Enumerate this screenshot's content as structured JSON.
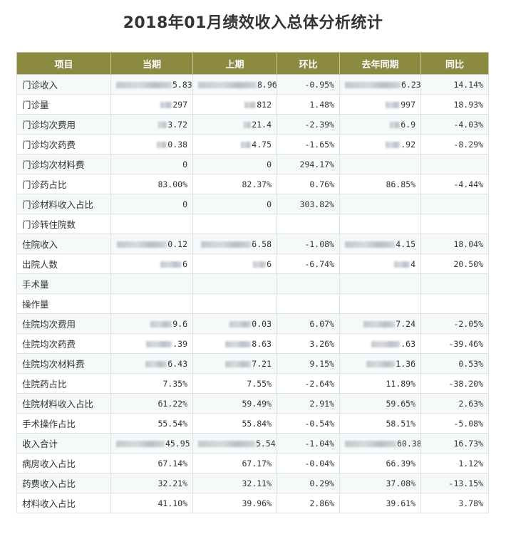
{
  "title": "2018年01月绩效收入总体分析统计",
  "columns": [
    "项目",
    "当期",
    "上期",
    "环比",
    "去年同期",
    "同比"
  ],
  "rows": [
    [
      "门诊收入",
      "5.83",
      "8.96",
      "-0.95%",
      "6.23",
      "14.14%"
    ],
    [
      "门诊量",
      "297",
      "812",
      "1.48%",
      "997",
      "18.93%"
    ],
    [
      "门诊均次费用",
      "3.72",
      "21.4",
      "-2.39%",
      "6.9",
      "-4.03%"
    ],
    [
      "门诊均次药费",
      "0.38",
      "4.75",
      "-1.65%",
      ".92",
      "-8.29%"
    ],
    [
      "门诊均次材料费",
      "0",
      "0",
      "294.17%",
      "",
      ""
    ],
    [
      "门诊药占比",
      "83.00%",
      "82.37%",
      "0.76%",
      "86.85%",
      "-4.44%"
    ],
    [
      "门诊材料收入占比",
      "0",
      "0",
      "303.82%",
      "",
      ""
    ],
    [
      "门诊转住院数",
      "",
      "",
      "",
      "",
      ""
    ],
    [
      "住院收入",
      "0.12",
      "6.58",
      "-1.08%",
      "4.15",
      "18.04%"
    ],
    [
      "出院人数",
      "6",
      "6",
      "-6.74%",
      "4",
      "20.50%"
    ],
    [
      "手术量",
      "",
      "",
      "",
      "",
      ""
    ],
    [
      "操作量",
      "",
      "",
      "",
      "",
      ""
    ],
    [
      "住院均次费用",
      "9.6",
      "0.03",
      "6.07%",
      "7.24",
      "-2.05%"
    ],
    [
      "住院均次药费",
      ".39",
      "8.63",
      "3.26%",
      ".63",
      "-39.46%"
    ],
    [
      "住院均次材料费",
      "6.43",
      "7.21",
      "9.15%",
      "1.36",
      "0.53%"
    ],
    [
      "住院药占比",
      "7.35%",
      "7.55%",
      "-2.64%",
      "11.89%",
      "-38.20%"
    ],
    [
      "住院材料收入占比",
      "61.22%",
      "59.49%",
      "2.91%",
      "59.65%",
      "2.63%"
    ],
    [
      "手术操作占比",
      "55.54%",
      "55.84%",
      "-0.54%",
      "58.51%",
      "-5.08%"
    ],
    [
      "收入合计",
      "45.95",
      "5.54",
      "-1.04%",
      "60.38",
      "16.73%"
    ],
    [
      "病房收入占比",
      "67.14%",
      "67.17%",
      "-0.04%",
      "66.39%",
      "1.12%"
    ],
    [
      "药费收入占比",
      "32.21%",
      "32.11%",
      "0.29%",
      "37.08%",
      "-13.15%"
    ],
    [
      "材料收入占比",
      "41.10%",
      "39.96%",
      "2.86%",
      "39.61%",
      "3.78%"
    ]
  ],
  "colors": {
    "header_bg": "#8c8a40",
    "header_text": "#ffffff",
    "row_odd": "#f6f9f9",
    "row_even": "#ffffff"
  }
}
